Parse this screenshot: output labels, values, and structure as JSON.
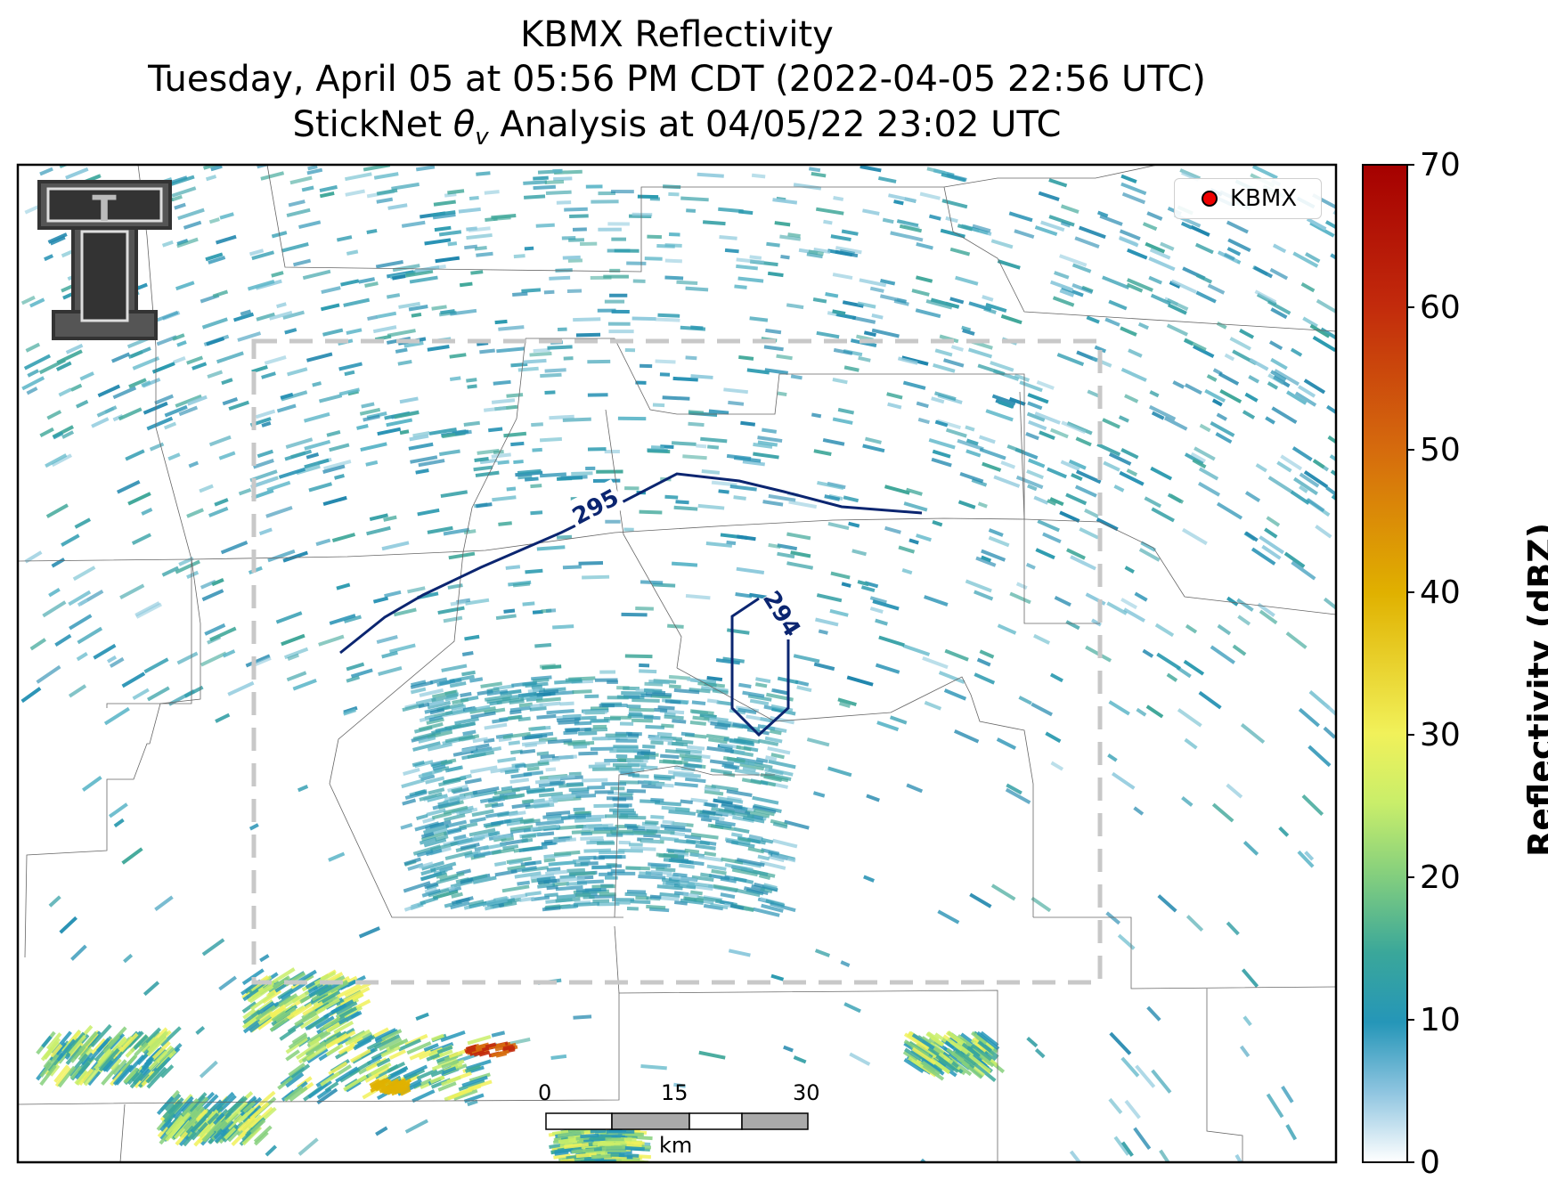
{
  "title": {
    "line1": "KBMX Reflectivity",
    "line2": "Tuesday, April 05 at 05:56 PM CDT (2022-04-05 22:56 UTC)",
    "line3_prefix": "StickNet ",
    "line3_symbol": "θ",
    "line3_sub": "v",
    "line3_suffix": " Analysis at 04/05/22 23:02 UTC"
  },
  "legend": {
    "marker_color": "#e00000",
    "label": "KBMX"
  },
  "contours": [
    {
      "label": "295",
      "color": "#0b2570"
    },
    {
      "label": "294",
      "color": "#0b2570"
    }
  ],
  "colorbar": {
    "label": "Reflectivity (dBZ)",
    "min": 0,
    "max": 70,
    "ticks": [
      "0",
      "10",
      "20",
      "30",
      "40",
      "50",
      "60",
      "70"
    ]
  },
  "scalebar": {
    "labels": [
      "0",
      "15",
      "30"
    ],
    "unit": "km"
  },
  "logo": {
    "name": "Texas Tech Double T",
    "text": "T"
  }
}
